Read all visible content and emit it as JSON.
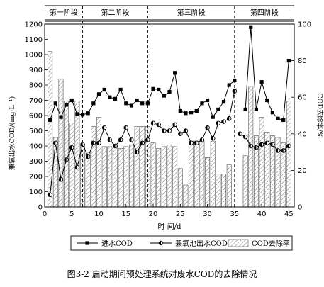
{
  "chart_data": {
    "type": "bar",
    "xlabel": "时  间/d",
    "ylabel_left": "兼氧出水COD/(mg·L⁻¹)",
    "ylabel_right": "COD去除率/%",
    "xlim": [
      0,
      46
    ],
    "ylim_left": [
      0,
      1200
    ],
    "ylim_right": [
      0,
      100
    ],
    "x_ticks": [
      0,
      5,
      10,
      15,
      20,
      25,
      30,
      35,
      40,
      45
    ],
    "y_ticks_left": [
      0,
      100,
      200,
      300,
      400,
      500,
      600,
      700,
      800,
      900,
      1000,
      1100,
      1200
    ],
    "y_ticks_right": [
      0,
      20,
      40,
      60,
      80,
      100
    ],
    "grid": false,
    "legend_position": "bottom",
    "stages": [
      {
        "label": "第一阶段",
        "start": 0,
        "end": 7
      },
      {
        "label": "第二阶段",
        "start": 7,
        "end": 19
      },
      {
        "label": "第三阶段",
        "start": 19,
        "end": 35
      },
      {
        "label": "第四阶段",
        "start": 35,
        "end": 46
      }
    ],
    "stage_boundaries": [
      7,
      19,
      35
    ],
    "series": [
      {
        "name": "进水COD",
        "kind": "line",
        "axis": "left",
        "marker": "filled-square",
        "segments": [
          {
            "x": [
              1,
              2,
              3,
              4,
              5,
              6,
              7,
              8,
              9,
              10,
              11,
              12,
              13,
              14,
              15,
              16,
              17,
              18,
              19,
              20,
              21,
              22,
              23,
              24,
              25,
              26,
              27,
              28,
              29,
              30,
              31,
              32,
              33,
              34,
              35
            ],
            "y": [
              570,
              680,
              590,
              670,
              700,
              610,
              605,
              615,
              680,
              740,
              770,
              720,
              710,
              770,
              680,
              665,
              700,
              680,
              680,
              775,
              770,
              730,
              755,
              880,
              630,
              615,
              620,
              630,
              680,
              700,
              590,
              640,
              690,
              800,
              830
            ]
          },
          {
            "x": [
              37,
              38,
              39,
              40,
              41,
              42,
              43,
              44,
              45
            ],
            "y": [
              640,
              1180,
              640,
              820,
              700,
              620,
              580,
              570,
              960
            ]
          }
        ]
      },
      {
        "name": "兼氧池出水COD",
        "kind": "line",
        "axis": "left",
        "marker": "half-filled-circle",
        "segments": [
          {
            "x": [
              1,
              2,
              3,
              4,
              5,
              6,
              7,
              8,
              9,
              10,
              11,
              12,
              13,
              14,
              15,
              16,
              17,
              18,
              19,
              20,
              21,
              22,
              23,
              24,
              25,
              26,
              27,
              28,
              29,
              30,
              31,
              32,
              33,
              34,
              35
            ],
            "y": [
              80,
              420,
              180,
              310,
              390,
              260,
              410,
              330,
              420,
              420,
              520,
              440,
              400,
              440,
              520,
              440,
              360,
              420,
              440,
              550,
              540,
              500,
              500,
              540,
              480,
              500,
              420,
              420,
              440,
              520,
              450,
              550,
              560,
              580,
              760
            ]
          },
          {
            "x": [
              36,
              37,
              38,
              39,
              40,
              41,
              42,
              43,
              44,
              45
            ],
            "y": [
              480,
              460,
              400,
              390,
              410,
              420,
              410,
              370,
              370,
              400
            ]
          }
        ]
      },
      {
        "name": "COD去除率",
        "kind": "bar",
        "axis": "right",
        "pattern": "diagonal-hatch",
        "x": [
          1,
          2,
          3,
          4,
          5,
          6,
          7,
          8,
          9,
          10,
          11,
          12,
          13,
          14,
          15,
          16,
          17,
          18,
          19,
          20,
          21,
          22,
          23,
          24,
          25,
          26,
          27,
          28,
          29,
          30,
          31,
          32,
          33,
          34,
          35,
          36,
          37,
          38,
          39,
          40,
          41,
          42,
          43,
          44,
          45
        ],
        "values": [
          85,
          38,
          70,
          58,
          46,
          58,
          34,
          30,
          44,
          49,
          33,
          33,
          34,
          32,
          33,
          34,
          44,
          44,
          44,
          35,
          32,
          33,
          34,
          33,
          21,
          12,
          36,
          36,
          36,
          27,
          36,
          18,
          18,
          23,
          0,
          0,
          28,
          66,
          39,
          49,
          41,
          39,
          38,
          35,
          58
        ]
      }
    ]
  },
  "caption": "图3-2  启动期间预处理系统对废水COD的去除情况"
}
